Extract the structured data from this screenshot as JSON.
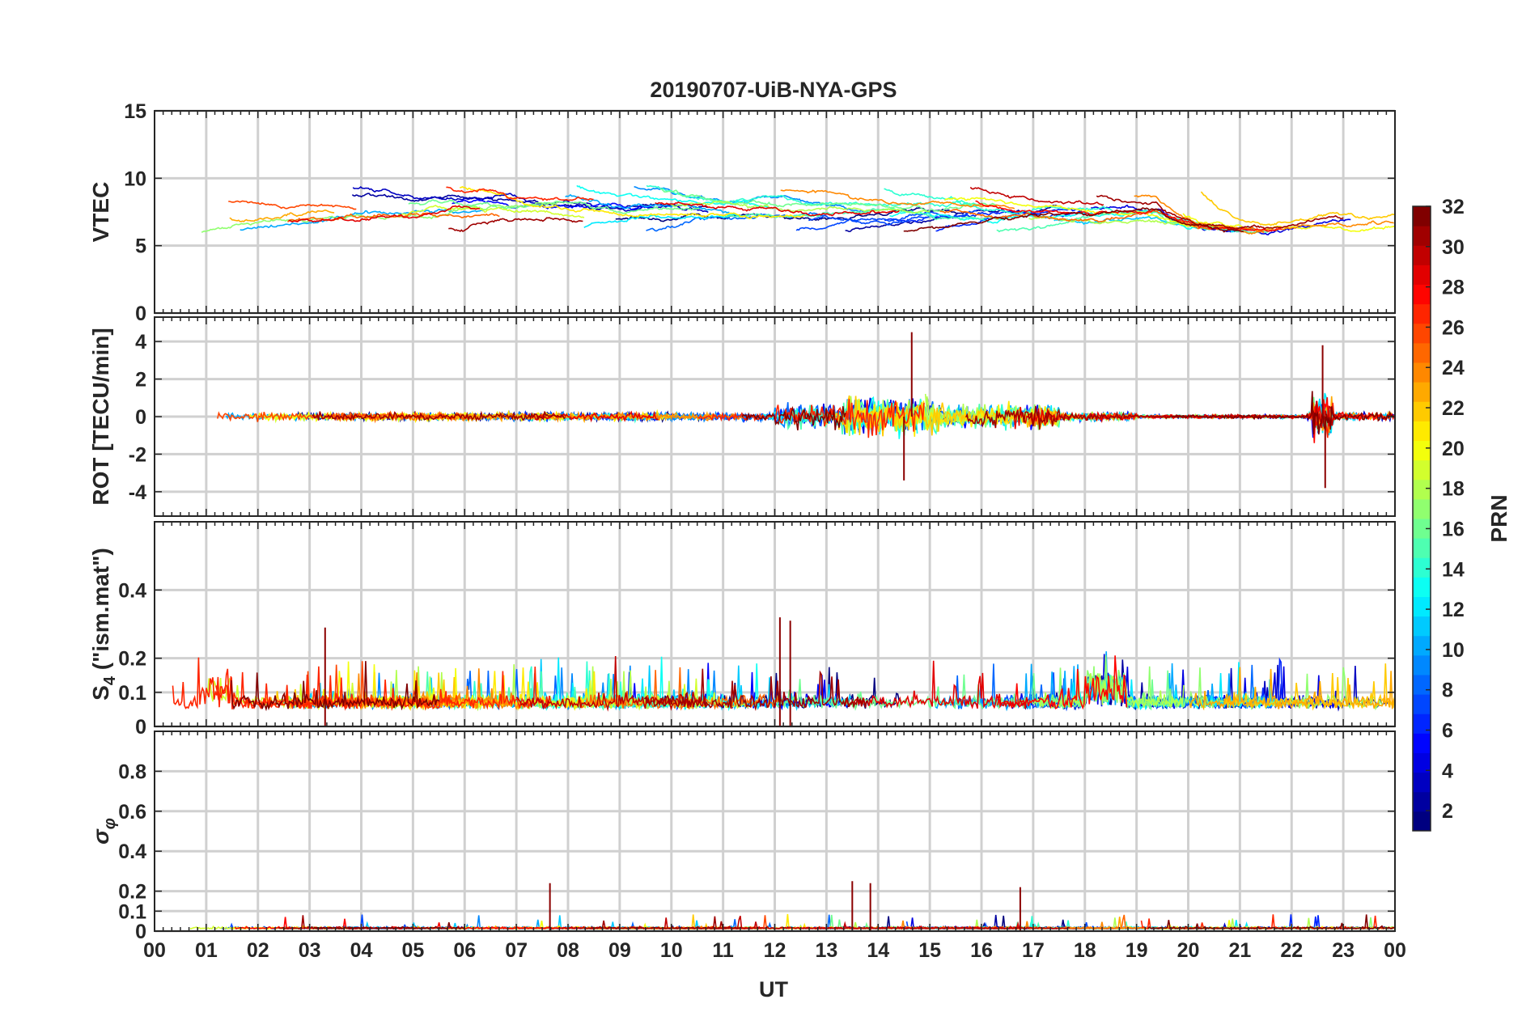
{
  "figure": {
    "title": "20190707-UiB-NYA-GPS",
    "xlabel": "UT",
    "x_tick_labels": [
      "00",
      "01",
      "02",
      "03",
      "04",
      "05",
      "06",
      "07",
      "08",
      "09",
      "10",
      "11",
      "12",
      "13",
      "14",
      "15",
      "16",
      "17",
      "18",
      "19",
      "20",
      "21",
      "22",
      "23",
      "00"
    ],
    "xlim": [
      0,
      24
    ]
  },
  "colorbar": {
    "label": "PRN",
    "range": [
      1,
      32
    ],
    "tick_labels": [
      "2",
      "4",
      "6",
      "8",
      "10",
      "12",
      "14",
      "16",
      "18",
      "20",
      "22",
      "24",
      "26",
      "28",
      "30",
      "32"
    ],
    "colormap": "jet",
    "levels": 32
  },
  "chart_data": [
    {
      "type": "line",
      "panel": "vtec",
      "ylabel": "VTEC",
      "ylim": [
        0,
        15
      ],
      "y_ticks": [
        0,
        5,
        10,
        15
      ],
      "y_tick_labels": [
        "0",
        "5",
        "10",
        "15"
      ],
      "grid": true,
      "series_by": "PRN",
      "baseline_range": [
        5,
        10
      ]
    },
    {
      "type": "line",
      "panel": "rot",
      "ylabel": "ROT [TECU/min]",
      "ylim": [
        -5.3,
        5.3
      ],
      "y_ticks": [
        -4,
        -2,
        0,
        2,
        4
      ],
      "y_tick_labels": [
        "-4",
        "-2",
        "0",
        "2",
        "4"
      ],
      "grid": true,
      "series_by": "PRN",
      "peak_values": [
        {
          "x": 22.6,
          "y": 3.8
        },
        {
          "x": 22.65,
          "y": -3.8
        },
        {
          "x": 14.65,
          "y": 4.5
        },
        {
          "x": 14.5,
          "y": -3.4
        }
      ]
    },
    {
      "type": "line",
      "panel": "s4",
      "ylabel_main": "S",
      "ylabel_sub": "4",
      "ylabel_rest": " (\"ism.mat\")",
      "ylim": [
        0,
        0.6
      ],
      "y_ticks": [
        0,
        0.1,
        0.2,
        0.4
      ],
      "y_tick_labels": [
        "0",
        "0.1",
        "0.2",
        "0.4"
      ],
      "grid": true,
      "series_by": "PRN",
      "peak_values": [
        {
          "x": 12.1,
          "y": 0.32
        },
        {
          "x": 12.3,
          "y": 0.31
        },
        {
          "x": 3.3,
          "y": 0.29
        }
      ]
    },
    {
      "type": "line",
      "panel": "sigma_phi",
      "ylabel_main": "σ",
      "ylabel_sub": "φ",
      "ylim": [
        0,
        1
      ],
      "y_ticks": [
        0,
        0.1,
        0.2,
        0.4,
        0.6,
        0.8
      ],
      "y_tick_labels": [
        "0",
        "0.1",
        "0.2",
        "0.4",
        "0.6",
        "0.8"
      ],
      "grid": true,
      "series_by": "PRN",
      "peak_values": [
        {
          "x": 7.65,
          "y": 0.24
        },
        {
          "x": 13.5,
          "y": 0.25
        },
        {
          "x": 13.85,
          "y": 0.24
        },
        {
          "x": 16.75,
          "y": 0.22
        }
      ]
    }
  ]
}
